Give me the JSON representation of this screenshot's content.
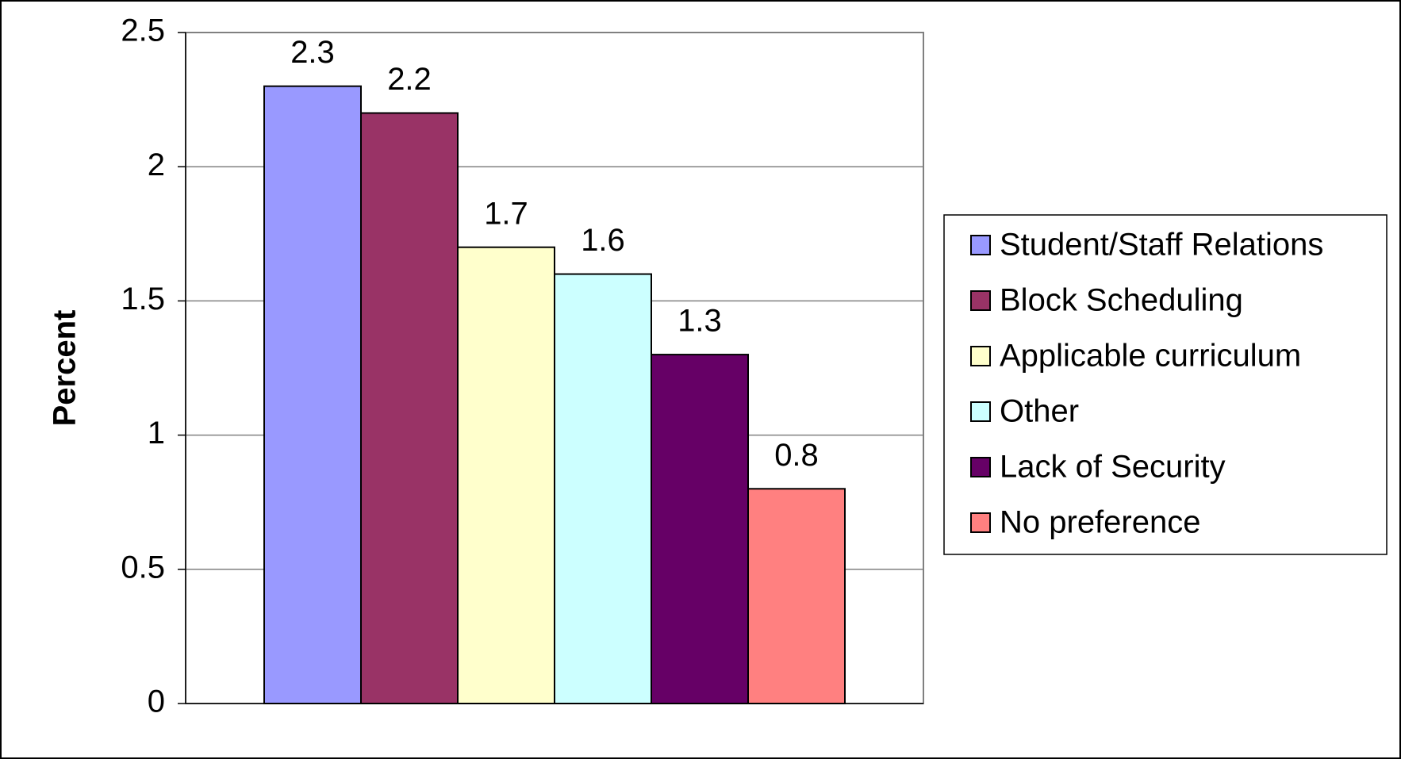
{
  "chart_data": {
    "type": "bar",
    "y_label": "Percent",
    "categories": [
      null
    ],
    "series": [
      {
        "name": "Student/Staff Relations",
        "color": "#9999ff",
        "values": [
          2.3
        ]
      },
      {
        "name": "Block Scheduling",
        "color": "#993366",
        "values": [
          2.2
        ]
      },
      {
        "name": "Applicable curriculum",
        "color": "#ffffcc",
        "values": [
          1.7
        ]
      },
      {
        "name": "Other",
        "color": "#ccffff",
        "values": [
          1.6
        ]
      },
      {
        "name": "Lack of Security",
        "color": "#660066",
        "values": [
          1.3
        ]
      },
      {
        "name": "No preference",
        "color": "#ff8080",
        "values": [
          0.8
        ]
      }
    ],
    "ylim": [
      0,
      2.5
    ],
    "yticks": [
      0,
      0.5,
      1,
      1.5,
      2,
      2.5
    ],
    "grid": true,
    "legend": "right"
  }
}
